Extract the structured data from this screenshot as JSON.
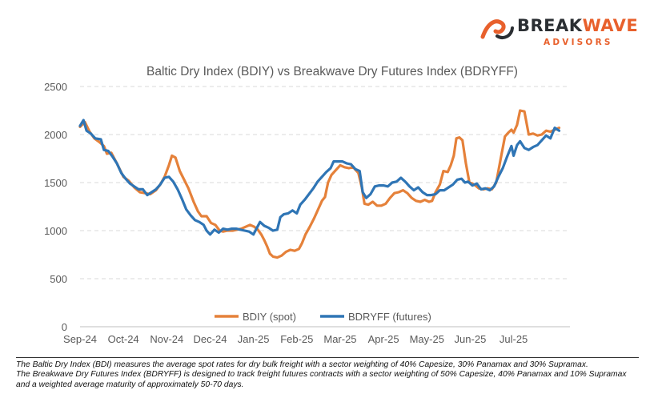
{
  "logo": {
    "brand_main_a": "BREAK",
    "brand_main_b": "WAVE",
    "brand_sub": "ADVISORS",
    "accent_color": "#e8602c",
    "dark_color": "#2b2f33",
    "mark_icon": "wave-mark-icon"
  },
  "chart_data": {
    "type": "line",
    "title": "Baltic Dry Index (BDIY) vs Breakwave Dry Futures Index (BDRYFF)",
    "xlabel": "",
    "ylabel": "",
    "ylim": [
      0,
      2500
    ],
    "yticks": [
      0,
      500,
      1000,
      1500,
      2000,
      2500
    ],
    "grid": true,
    "legend_position": "bottom-inside",
    "x_tick_labels": [
      "Sep-24",
      "Oct-24",
      "Nov-24",
      "Dec-24",
      "Jan-25",
      "Feb-25",
      "Mar-25",
      "Apr-25",
      "May-25",
      "Jun-25",
      "Jul-25"
    ],
    "x_tick_months": [
      0,
      1,
      2,
      3,
      4,
      5,
      6,
      7,
      8,
      9,
      10
    ],
    "x_range_months": [
      0,
      11.3
    ],
    "x_unit": "months since Sep-24",
    "series": [
      {
        "name": "BDIY (spot)",
        "color": "#e5813a",
        "points": [
          [
            0.0,
            2080
          ],
          [
            0.11,
            2130
          ],
          [
            0.22,
            2030
          ],
          [
            0.33,
            1960
          ],
          [
            0.45,
            1920
          ],
          [
            0.55,
            1880
          ],
          [
            0.62,
            1800
          ],
          [
            0.72,
            1810
          ],
          [
            0.85,
            1700
          ],
          [
            1.0,
            1560
          ],
          [
            1.12,
            1520
          ],
          [
            1.25,
            1450
          ],
          [
            1.38,
            1400
          ],
          [
            1.5,
            1390
          ],
          [
            1.62,
            1380
          ],
          [
            1.75,
            1420
          ],
          [
            1.85,
            1480
          ],
          [
            1.95,
            1560
          ],
          [
            2.05,
            1680
          ],
          [
            2.12,
            1780
          ],
          [
            2.2,
            1760
          ],
          [
            2.3,
            1620
          ],
          [
            2.4,
            1530
          ],
          [
            2.5,
            1440
          ],
          [
            2.62,
            1300
          ],
          [
            2.72,
            1200
          ],
          [
            2.8,
            1150
          ],
          [
            2.92,
            1150
          ],
          [
            3.02,
            1080
          ],
          [
            3.12,
            1060
          ],
          [
            3.22,
            1000
          ],
          [
            3.3,
            990
          ],
          [
            3.4,
            1000
          ],
          [
            3.52,
            1000
          ],
          [
            3.62,
            1010
          ],
          [
            3.72,
            1020
          ],
          [
            3.82,
            1040
          ],
          [
            3.92,
            1060
          ],
          [
            4.02,
            1040
          ],
          [
            4.1,
            1010
          ],
          [
            4.18,
            960
          ],
          [
            4.25,
            900
          ],
          [
            4.32,
            830
          ],
          [
            4.38,
            760
          ],
          [
            4.45,
            730
          ],
          [
            4.55,
            720
          ],
          [
            4.65,
            740
          ],
          [
            4.75,
            780
          ],
          [
            4.85,
            800
          ],
          [
            4.95,
            790
          ],
          [
            5.05,
            810
          ],
          [
            5.12,
            870
          ],
          [
            5.2,
            960
          ],
          [
            5.3,
            1040
          ],
          [
            5.4,
            1130
          ],
          [
            5.5,
            1230
          ],
          [
            5.58,
            1310
          ],
          [
            5.65,
            1350
          ],
          [
            5.72,
            1500
          ],
          [
            5.8,
            1580
          ],
          [
            5.9,
            1630
          ],
          [
            6.0,
            1680
          ],
          [
            6.1,
            1660
          ],
          [
            6.2,
            1650
          ],
          [
            6.3,
            1660
          ],
          [
            6.42,
            1600
          ],
          [
            6.5,
            1450
          ],
          [
            6.56,
            1280
          ],
          [
            6.65,
            1270
          ],
          [
            6.75,
            1300
          ],
          [
            6.85,
            1260
          ],
          [
            6.95,
            1260
          ],
          [
            7.05,
            1280
          ],
          [
            7.15,
            1340
          ],
          [
            7.25,
            1390
          ],
          [
            7.35,
            1400
          ],
          [
            7.45,
            1420
          ],
          [
            7.55,
            1390
          ],
          [
            7.65,
            1340
          ],
          [
            7.75,
            1310
          ],
          [
            7.85,
            1300
          ],
          [
            7.95,
            1320
          ],
          [
            8.05,
            1300
          ],
          [
            8.12,
            1310
          ],
          [
            8.2,
            1400
          ],
          [
            8.3,
            1480
          ],
          [
            8.38,
            1620
          ],
          [
            8.48,
            1610
          ],
          [
            8.55,
            1680
          ],
          [
            8.62,
            1780
          ],
          [
            8.68,
            1960
          ],
          [
            8.75,
            1970
          ],
          [
            8.82,
            1940
          ],
          [
            8.9,
            1700
          ],
          [
            8.98,
            1500
          ],
          [
            9.05,
            1490
          ],
          [
            9.12,
            1470
          ],
          [
            9.2,
            1440
          ],
          [
            9.3,
            1430
          ],
          [
            9.4,
            1440
          ],
          [
            9.5,
            1430
          ],
          [
            9.6,
            1500
          ],
          [
            9.7,
            1740
          ],
          [
            9.8,
            1980
          ],
          [
            9.88,
            2020
          ],
          [
            9.95,
            2050
          ],
          [
            10.0,
            2020
          ],
          [
            10.08,
            2100
          ],
          [
            10.15,
            2250
          ],
          [
            10.25,
            2240
          ],
          [
            10.35,
            2000
          ],
          [
            10.45,
            2010
          ],
          [
            10.55,
            1990
          ],
          [
            10.65,
            2000
          ],
          [
            10.75,
            2040
          ],
          [
            10.85,
            2030
          ],
          [
            10.95,
            2050
          ],
          [
            11.05,
            2070
          ]
        ]
      },
      {
        "name": "BDRYFF (futures)",
        "color": "#2f75b5",
        "points": [
          [
            0.0,
            2090
          ],
          [
            0.08,
            2150
          ],
          [
            0.15,
            2040
          ],
          [
            0.25,
            2010
          ],
          [
            0.35,
            1960
          ],
          [
            0.48,
            1950
          ],
          [
            0.55,
            1840
          ],
          [
            0.65,
            1830
          ],
          [
            0.75,
            1770
          ],
          [
            0.85,
            1700
          ],
          [
            0.95,
            1600
          ],
          [
            1.05,
            1540
          ],
          [
            1.15,
            1490
          ],
          [
            1.25,
            1460
          ],
          [
            1.35,
            1430
          ],
          [
            1.45,
            1430
          ],
          [
            1.55,
            1370
          ],
          [
            1.65,
            1400
          ],
          [
            1.75,
            1430
          ],
          [
            1.85,
            1480
          ],
          [
            1.95,
            1550
          ],
          [
            2.05,
            1560
          ],
          [
            2.15,
            1510
          ],
          [
            2.25,
            1430
          ],
          [
            2.35,
            1330
          ],
          [
            2.45,
            1220
          ],
          [
            2.55,
            1160
          ],
          [
            2.65,
            1110
          ],
          [
            2.75,
            1090
          ],
          [
            2.85,
            1060
          ],
          [
            2.92,
            1000
          ],
          [
            3.0,
            960
          ],
          [
            3.1,
            1010
          ],
          [
            3.2,
            980
          ],
          [
            3.3,
            1020
          ],
          [
            3.4,
            1010
          ],
          [
            3.5,
            1020
          ],
          [
            3.6,
            1020
          ],
          [
            3.7,
            1010
          ],
          [
            3.8,
            1000
          ],
          [
            3.9,
            990
          ],
          [
            4.0,
            960
          ],
          [
            4.08,
            1030
          ],
          [
            4.15,
            1090
          ],
          [
            4.25,
            1050
          ],
          [
            4.35,
            1030
          ],
          [
            4.45,
            1000
          ],
          [
            4.55,
            1010
          ],
          [
            4.62,
            1140
          ],
          [
            4.7,
            1170
          ],
          [
            4.8,
            1180
          ],
          [
            4.9,
            1210
          ],
          [
            5.0,
            1180
          ],
          [
            5.08,
            1270
          ],
          [
            5.18,
            1320
          ],
          [
            5.28,
            1380
          ],
          [
            5.38,
            1440
          ],
          [
            5.48,
            1510
          ],
          [
            5.58,
            1560
          ],
          [
            5.68,
            1610
          ],
          [
            5.78,
            1650
          ],
          [
            5.85,
            1720
          ],
          [
            5.95,
            1720
          ],
          [
            6.05,
            1720
          ],
          [
            6.15,
            1700
          ],
          [
            6.25,
            1690
          ],
          [
            6.35,
            1640
          ],
          [
            6.45,
            1620
          ],
          [
            6.52,
            1400
          ],
          [
            6.6,
            1340
          ],
          [
            6.7,
            1380
          ],
          [
            6.8,
            1460
          ],
          [
            6.9,
            1470
          ],
          [
            7.0,
            1470
          ],
          [
            7.1,
            1460
          ],
          [
            7.2,
            1500
          ],
          [
            7.3,
            1510
          ],
          [
            7.4,
            1550
          ],
          [
            7.5,
            1510
          ],
          [
            7.6,
            1460
          ],
          [
            7.7,
            1420
          ],
          [
            7.8,
            1450
          ],
          [
            7.9,
            1400
          ],
          [
            8.0,
            1370
          ],
          [
            8.1,
            1370
          ],
          [
            8.2,
            1380
          ],
          [
            8.3,
            1420
          ],
          [
            8.4,
            1420
          ],
          [
            8.5,
            1450
          ],
          [
            8.6,
            1480
          ],
          [
            8.7,
            1530
          ],
          [
            8.8,
            1540
          ],
          [
            8.88,
            1500
          ],
          [
            8.95,
            1510
          ],
          [
            9.05,
            1470
          ],
          [
            9.15,
            1490
          ],
          [
            9.25,
            1430
          ],
          [
            9.35,
            1440
          ],
          [
            9.45,
            1420
          ],
          [
            9.55,
            1460
          ],
          [
            9.65,
            1560
          ],
          [
            9.75,
            1650
          ],
          [
            9.85,
            1770
          ],
          [
            9.95,
            1880
          ],
          [
            10.0,
            1780
          ],
          [
            10.08,
            1890
          ],
          [
            10.15,
            1930
          ],
          [
            10.25,
            1860
          ],
          [
            10.35,
            1840
          ],
          [
            10.45,
            1870
          ],
          [
            10.55,
            1890
          ],
          [
            10.65,
            1940
          ],
          [
            10.75,
            1990
          ],
          [
            10.85,
            1960
          ],
          [
            10.95,
            2070
          ],
          [
            11.05,
            2040
          ]
        ]
      }
    ]
  },
  "footnote": {
    "line1": "The Baltic Dry Index (BDI) measures the average spot rates for dry bulk freight with a sector weighting of 40% Capesize, 30% Panamax and 30% Supramax.",
    "line2": "The Breakwave Dry Futures Index (BDRYFF) is designed to track freight futures contracts with a sector weighting of 50% Capesize, 40% Panamax and 10% Supramax and a weighted average maturity of approximately 50-70 days."
  }
}
